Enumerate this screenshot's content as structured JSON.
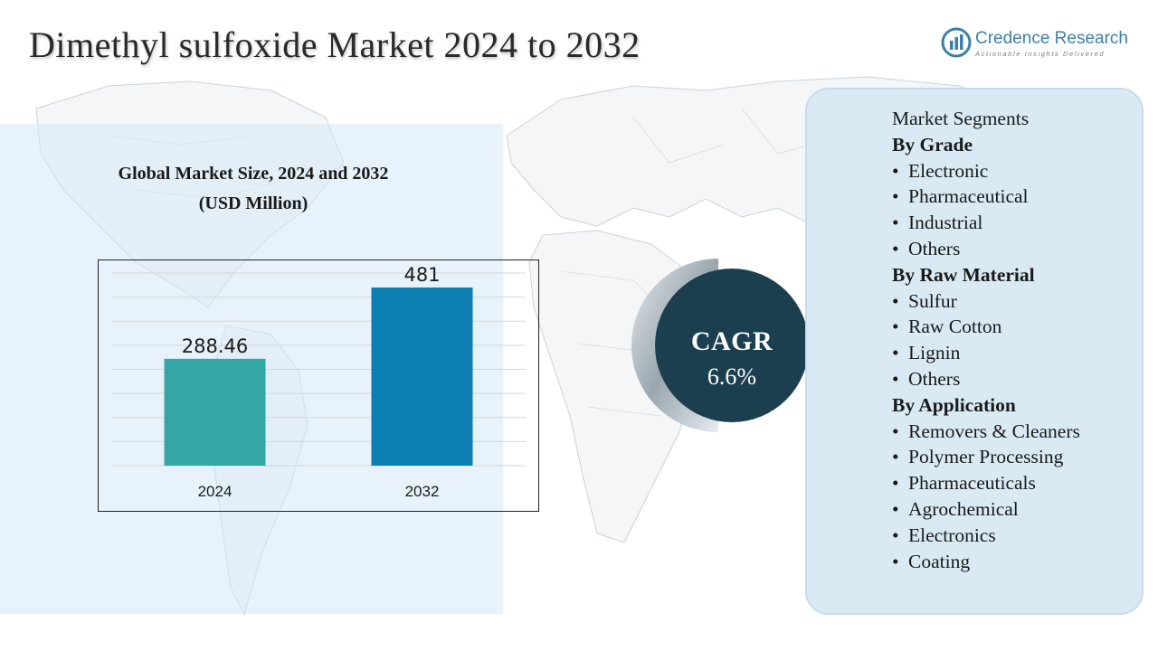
{
  "header": {
    "title": "Dimethyl sulfoxide Market 2024 to 2032"
  },
  "logo": {
    "name": "Credence Research",
    "tagline": "Actionable Insights Delivered"
  },
  "chart_data": {
    "type": "bar",
    "title": "Global Market Size, 2024 and 2032",
    "subtitle": "(USD Million)",
    "categories": [
      "2024",
      "2032"
    ],
    "values": [
      288.46,
      481
    ],
    "value_labels": [
      "288.46",
      "481"
    ],
    "colors": [
      "#35a6a6",
      "#0e7fb3"
    ],
    "ylim": [
      0,
      520
    ],
    "grid": true,
    "xlabel": "",
    "ylabel": ""
  },
  "cagr": {
    "label": "CAGR",
    "value": "6.6%"
  },
  "segments": {
    "title": "Market Segments",
    "groups": [
      {
        "heading": "By Grade",
        "items": [
          "Electronic",
          "Pharmaceutical",
          "Industrial",
          "Others"
        ]
      },
      {
        "heading": "By Raw Material",
        "items": [
          "Sulfur",
          "Raw Cotton",
          "Lignin",
          "Others"
        ]
      },
      {
        "heading": "By Application",
        "items": [
          "Removers & Cleaners",
          "Polymer Processing",
          "Pharmaceuticals",
          "Agrochemical",
          "Electronics",
          "Coating"
        ]
      }
    ]
  },
  "colors": {
    "panel_bg": "#d9eaf5",
    "cagr_circle": "#1b3f4f",
    "bar_2024": "#35a6a6",
    "bar_2032": "#0e7fb3"
  }
}
